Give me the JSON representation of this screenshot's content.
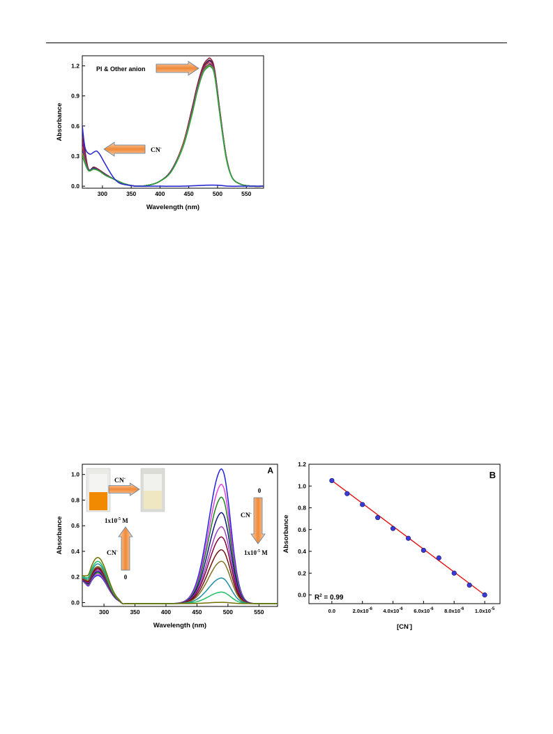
{
  "chart_data": [
    {
      "type": "line",
      "xlabel": "Wavelength (nm)",
      "ylabel": "Absorbance",
      "xlim": [
        265,
        580
      ],
      "ylim": [
        -0.02,
        1.3
      ],
      "xticks": [
        300,
        350,
        400,
        450,
        500,
        550
      ],
      "yticks": [
        0.0,
        0.3,
        0.6,
        0.9,
        1.2
      ],
      "ytick_labels": [
        "0.0",
        "0.3",
        "0.6",
        "0.9",
        "1.2"
      ],
      "annotations": [
        {
          "text": "PI & Other anion",
          "arrow": "right"
        },
        {
          "text": "CN",
          "superscript": "-",
          "arrow": "left"
        }
      ],
      "series_colors": [
        "#2a2a2a",
        "#8b1c3a",
        "#7a1a7a",
        "#c04040",
        "#3a3a8a",
        "#9a9a30",
        "#2aa040"
      ],
      "series_colors_note": "overlapping PI and other-anion spectra",
      "series": [
        {
          "color": "#2a2a2a",
          "x": [
            265,
            275,
            285,
            295,
            305,
            320,
            340,
            360,
            380,
            400,
            420,
            440,
            455,
            465,
            475,
            482,
            488,
            495,
            505,
            515,
            525,
            540,
            560,
            580
          ],
          "y": [
            0.55,
            0.18,
            0.19,
            0.16,
            0.12,
            0.07,
            0.02,
            0.0,
            0.01,
            0.05,
            0.16,
            0.42,
            0.75,
            1.0,
            1.18,
            1.24,
            1.25,
            1.15,
            0.7,
            0.3,
            0.09,
            0.02,
            0.0,
            0.0
          ]
        },
        {
          "color": "#8b1c3a",
          "x": [
            265,
            275,
            285,
            295,
            305,
            320,
            340,
            360,
            380,
            400,
            420,
            440,
            455,
            465,
            475,
            482,
            488,
            495,
            505,
            515,
            525,
            540,
            560,
            580
          ],
          "y": [
            0.5,
            0.18,
            0.19,
            0.16,
            0.12,
            0.07,
            0.02,
            0.0,
            0.01,
            0.05,
            0.16,
            0.42,
            0.76,
            1.01,
            1.2,
            1.26,
            1.27,
            1.16,
            0.71,
            0.3,
            0.09,
            0.02,
            0.0,
            0.0
          ]
        },
        {
          "color": "#7a1a7a",
          "x": [
            265,
            275,
            285,
            295,
            305,
            320,
            340,
            360,
            380,
            400,
            420,
            440,
            455,
            465,
            475,
            482,
            488,
            495,
            505,
            515,
            525,
            540,
            560,
            580
          ],
          "y": [
            0.45,
            0.17,
            0.18,
            0.15,
            0.12,
            0.07,
            0.02,
            0.0,
            0.01,
            0.05,
            0.16,
            0.41,
            0.74,
            0.99,
            1.17,
            1.23,
            1.24,
            1.14,
            0.7,
            0.3,
            0.09,
            0.02,
            0.0,
            0.0
          ]
        },
        {
          "color": "#c04040",
          "x": [
            265,
            275,
            285,
            295,
            305,
            320,
            340,
            360,
            380,
            400,
            420,
            440,
            455,
            465,
            475,
            482,
            488,
            495,
            505,
            515,
            525,
            540,
            560,
            580
          ],
          "y": [
            0.4,
            0.17,
            0.18,
            0.15,
            0.11,
            0.07,
            0.02,
            0.0,
            0.01,
            0.05,
            0.15,
            0.41,
            0.73,
            0.98,
            1.16,
            1.22,
            1.22,
            1.13,
            0.69,
            0.29,
            0.09,
            0.02,
            0.0,
            0.0
          ]
        },
        {
          "color": "#3a3a8a",
          "x": [
            265,
            275,
            285,
            295,
            305,
            320,
            340,
            360,
            380,
            400,
            420,
            440,
            455,
            465,
            475,
            482,
            488,
            495,
            505,
            515,
            525,
            540,
            560,
            580
          ],
          "y": [
            0.36,
            0.17,
            0.18,
            0.15,
            0.11,
            0.07,
            0.02,
            0.0,
            0.01,
            0.05,
            0.15,
            0.4,
            0.72,
            0.97,
            1.15,
            1.2,
            1.21,
            1.12,
            0.68,
            0.29,
            0.09,
            0.02,
            0.0,
            0.0
          ]
        },
        {
          "color": "#9a9a30",
          "x": [
            265,
            275,
            285,
            295,
            305,
            320,
            340,
            360,
            380,
            400,
            420,
            440,
            455,
            465,
            475,
            482,
            488,
            495,
            505,
            515,
            525,
            540,
            560,
            580
          ],
          "y": [
            0.33,
            0.16,
            0.17,
            0.15,
            0.11,
            0.07,
            0.02,
            0.0,
            0.01,
            0.05,
            0.15,
            0.4,
            0.71,
            0.96,
            1.14,
            1.19,
            1.2,
            1.11,
            0.68,
            0.29,
            0.09,
            0.02,
            0.0,
            0.0
          ]
        },
        {
          "color": "#2aa040",
          "x": [
            265,
            275,
            285,
            295,
            305,
            320,
            340,
            360,
            380,
            400,
            420,
            440,
            455,
            465,
            475,
            482,
            488,
            495,
            505,
            515,
            525,
            540,
            560,
            580
          ],
          "y": [
            0.3,
            0.16,
            0.17,
            0.15,
            0.11,
            0.07,
            0.02,
            0.0,
            0.01,
            0.05,
            0.15,
            0.39,
            0.7,
            0.95,
            1.13,
            1.18,
            1.19,
            1.1,
            0.67,
            0.28,
            0.09,
            0.02,
            0.0,
            0.0
          ]
        },
        {
          "color": "#2a2ad0",
          "x": [
            265,
            270,
            278,
            285,
            290,
            295,
            302,
            310,
            320,
            330,
            345,
            360,
            380,
            400,
            440,
            480,
            500,
            520,
            540,
            560,
            580
          ],
          "y": [
            0.6,
            0.38,
            0.32,
            0.34,
            0.35,
            0.32,
            0.25,
            0.17,
            0.08,
            0.03,
            0.01,
            0.0,
            0.0,
            0.0,
            0.0,
            0.01,
            0.01,
            0.0,
            0.0,
            0.0,
            0.0
          ]
        }
      ]
    },
    {
      "type": "line",
      "panel_label": "A",
      "xlabel": "Wavelength (nm)",
      "ylabel": "Absorbance",
      "xlim": [
        265,
        580
      ],
      "ylim": [
        -0.03,
        1.08
      ],
      "xticks": [
        300,
        350,
        400,
        450,
        500,
        550
      ],
      "yticks": [
        0.0,
        0.2,
        0.4,
        0.6,
        0.8,
        1.0
      ],
      "ytick_labels": [
        "0.0",
        "0.2",
        "0.4",
        "0.6",
        "0.8",
        "1.0"
      ],
      "annotations": {
        "inset_arrow_label": "CN",
        "inset_arrow_sup": "-",
        "up_arrow_top": "1x10",
        "up_arrow_top_sup": "-5",
        "up_arrow_top_unit": " M",
        "up_arrow_mid": "CN",
        "up_arrow_mid_sup": "-",
        "up_arrow_bottom": "0",
        "down_arrow_top": "0",
        "down_arrow_mid": "CN",
        "down_arrow_mid_sup": "-",
        "down_arrow_bottom": "1x10",
        "down_arrow_bottom_sup": "-5",
        "down_arrow_bottom_unit": " M"
      },
      "peak_x": 490,
      "peak_values": [
        1.05,
        0.93,
        0.83,
        0.71,
        0.6,
        0.52,
        0.42,
        0.33,
        0.2,
        0.09,
        0.01
      ],
      "uv_peak_values": [
        0.22,
        0.23,
        0.24,
        0.25,
        0.26,
        0.27,
        0.28,
        0.29,
        0.31,
        0.33,
        0.36
      ],
      "series_colors": [
        "#2020e0",
        "#e040e0",
        "#208020",
        "#101080",
        "#a040c0",
        "#800040",
        "#701010",
        "#807020",
        "#2090a0",
        "#20c060",
        "#707000"
      ]
    },
    {
      "type": "scatter",
      "panel_label": "B",
      "xlabel": "[CN",
      "xlabel_sup": "-",
      "xlabel_tail": "]",
      "ylabel": "Absorbance",
      "xlim": [
        -1.5e-06,
        1.1e-05
      ],
      "ylim": [
        -0.08,
        1.2
      ],
      "xticks": [
        0,
        2e-06,
        4e-06,
        6e-06,
        8e-06,
        1e-05
      ],
      "xtick_labels": [
        [
          "0.0",
          ""
        ],
        [
          "2.0x10",
          "-6"
        ],
        [
          "4.0x10",
          "-6"
        ],
        [
          "6.0x10",
          "-6"
        ],
        [
          "8.0x10",
          "-6"
        ],
        [
          "1.0x10",
          "-5"
        ]
      ],
      "yticks": [
        0.0,
        0.2,
        0.4,
        0.6,
        0.8,
        1.0,
        1.2
      ],
      "ytick_labels": [
        "0.0",
        "0.2",
        "0.4",
        "0.6",
        "0.8",
        "1.0",
        "1.2"
      ],
      "x": [
        0,
        1e-06,
        2e-06,
        3e-06,
        4e-06,
        5e-06,
        6e-06,
        7e-06,
        8e-06,
        9e-06,
        1e-05
      ],
      "y": [
        1.05,
        0.93,
        0.83,
        0.71,
        0.61,
        0.52,
        0.41,
        0.34,
        0.2,
        0.09,
        0.0
      ],
      "fit": {
        "x": [
          0,
          1e-05
        ],
        "y": [
          1.05,
          0.0
        ],
        "color": "#e01010"
      },
      "annotation": "R",
      "annotation_sup": "2",
      "annotation_tail": " = 0.99"
    }
  ]
}
